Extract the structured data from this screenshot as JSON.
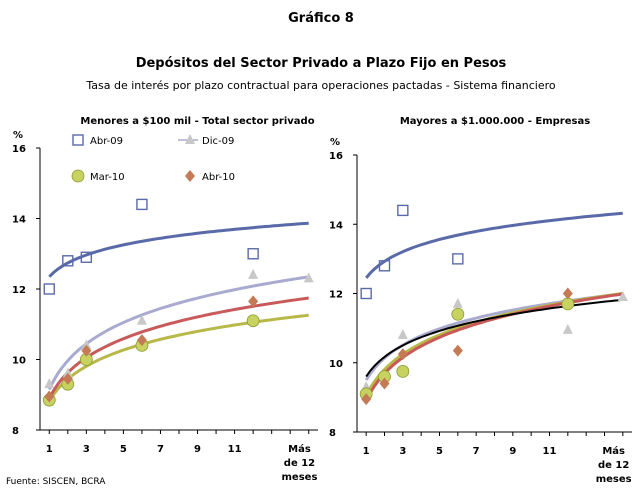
{
  "figure_label": "Gráfico 8",
  "title": "Depósitos del Sector Privado a Plazo Fijo en Pesos",
  "subtitle": "Tasa de interés por plazo contractual para operaciones pactadas - Sistema financiero",
  "source": "Fuente: SISCEN, BCRA",
  "colors": {
    "abr09": "#5a6aa8",
    "dic09": "#c8c8c8",
    "mar10": "#c8d260",
    "abr10": "#c47a55",
    "fit_abr09": "#5a6aa8",
    "fit_dic09": "#a9aad0",
    "fit_mar10": "#b8b848",
    "fit_abr10": "#c85a5a",
    "fit_all": "#000000"
  },
  "chart_data": [
    {
      "type": "scatter",
      "title": "Menores a $100 mil - Total sector privado",
      "ylabel": "%",
      "ylim": [
        8,
        16
      ],
      "yticks": [
        "8",
        "10",
        "12",
        "14",
        "16"
      ],
      "xlim": [
        0.5,
        15.5
      ],
      "xticks": [
        {
          "x": 1,
          "label": "1"
        },
        {
          "x": 3,
          "label": "3"
        },
        {
          "x": 5,
          "label": "5"
        },
        {
          "x": 7,
          "label": "7"
        },
        {
          "x": 9,
          "label": "9"
        },
        {
          "x": 11,
          "label": "11"
        },
        {
          "x": 14.5,
          "label": "Más de 12 meses"
        }
      ],
      "legend": [
        "Abr-09",
        "Dic-09",
        "Mar-10",
        "Abr-10"
      ],
      "series": [
        {
          "name": "Abr-09",
          "marker": "square",
          "points": [
            [
              1,
              12.0
            ],
            [
              2,
              12.8
            ],
            [
              3,
              12.9
            ],
            [
              6,
              14.4
            ],
            [
              12,
              13.0
            ]
          ],
          "fit": {
            "a": 12.35,
            "b": 0.56
          }
        },
        {
          "name": "Dic-09",
          "marker": "triangle",
          "points": [
            [
              1,
              9.3
            ],
            [
              2,
              9.6
            ],
            [
              3,
              10.4
            ],
            [
              6,
              11.1
            ],
            [
              12,
              12.4
            ],
            [
              15,
              12.3
            ]
          ],
          "fit": {
            "a": 9.15,
            "b": 1.18
          }
        },
        {
          "name": "Mar-10",
          "marker": "circle",
          "points": [
            [
              1,
              8.85
            ],
            [
              2,
              9.3
            ],
            [
              3,
              10.0
            ],
            [
              6,
              10.4
            ],
            [
              12,
              11.1
            ]
          ],
          "fit": {
            "a": 8.82,
            "b": 0.9
          }
        },
        {
          "name": "Abr-10",
          "marker": "diamond",
          "points": [
            [
              1,
              8.95
            ],
            [
              2,
              9.45
            ],
            [
              3,
              10.25
            ],
            [
              6,
              10.55
            ],
            [
              12,
              11.65
            ]
          ],
          "fit": {
            "a": 8.9,
            "b": 1.05
          }
        }
      ]
    },
    {
      "type": "scatter",
      "title": "Mayores a $1.000.000 - Empresas",
      "ylabel": "%",
      "ylim": [
        8,
        16
      ],
      "yticks": [
        "8",
        "10",
        "12",
        "14",
        "16"
      ],
      "xlim": [
        0.5,
        15.5
      ],
      "xticks": [
        {
          "x": 1,
          "label": "1"
        },
        {
          "x": 3,
          "label": "3"
        },
        {
          "x": 5,
          "label": "5"
        },
        {
          "x": 7,
          "label": "7"
        },
        {
          "x": 9,
          "label": "9"
        },
        {
          "x": 11,
          "label": "11"
        },
        {
          "x": 14.5,
          "label": "Más de 12 meses"
        }
      ],
      "series": [
        {
          "name": "Abr-09",
          "marker": "square",
          "points": [
            [
              1,
              12.0
            ],
            [
              2,
              12.8
            ],
            [
              3,
              14.4
            ],
            [
              6,
              13.0
            ]
          ],
          "fit": {
            "a": 12.45,
            "b": 0.69
          }
        },
        {
          "name": "Dic-09",
          "marker": "triangle",
          "points": [
            [
              1,
              9.3
            ],
            [
              2,
              9.6
            ],
            [
              3,
              10.8
            ],
            [
              6,
              11.7
            ],
            [
              12,
              10.95
            ],
            [
              15,
              11.9
            ]
          ],
          "fit": {
            "a": 9.5,
            "b": 0.92
          }
        },
        {
          "name": "Mar-10",
          "marker": "circle",
          "points": [
            [
              1,
              9.1
            ],
            [
              2,
              9.6
            ],
            [
              3,
              9.75
            ],
            [
              6,
              11.4
            ],
            [
              12,
              11.7
            ]
          ],
          "fit": {
            "a": 9.05,
            "b": 1.09
          }
        },
        {
          "name": "Abr-10",
          "marker": "diamond",
          "points": [
            [
              1,
              8.95
            ],
            [
              2,
              9.4
            ],
            [
              3,
              10.25
            ],
            [
              6,
              10.35
            ],
            [
              12,
              12.0
            ]
          ],
          "fit": {
            "a": 8.9,
            "b": 1.14
          }
        },
        {
          "name": "",
          "marker": "none",
          "points": [],
          "fit": {
            "a": 9.6,
            "b": 0.82
          }
        }
      ]
    }
  ]
}
